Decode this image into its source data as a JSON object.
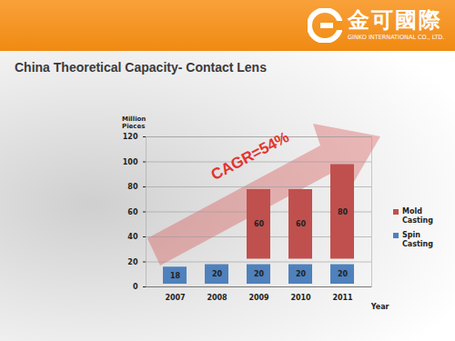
{
  "header": {
    "company": "金可國際",
    "company_en": "GINKO INTERNATIONAL CO., LTD."
  },
  "chart_data": {
    "type": "bar",
    "stacked": true,
    "title": "China Theoretical Capacity- Contact Lens",
    "ylabel": "Million Pieces",
    "xlabel": "Year",
    "annotation": "CAGR=54%",
    "categories": [
      "2007",
      "2008",
      "2009",
      "2010",
      "2011"
    ],
    "series": [
      {
        "name": "Mold Casting",
        "color": "#c0504d",
        "values": [
          null,
          null,
          60,
          60,
          80
        ]
      },
      {
        "name": "Spin Casting",
        "color": "#4f81bd",
        "values": [
          18,
          20,
          20,
          20,
          20
        ]
      }
    ],
    "ylim": [
      0,
      120
    ],
    "yticks": [
      0,
      20,
      40,
      60,
      80,
      100,
      120
    ],
    "grid": true,
    "legend": "right",
    "data_labels": true
  }
}
